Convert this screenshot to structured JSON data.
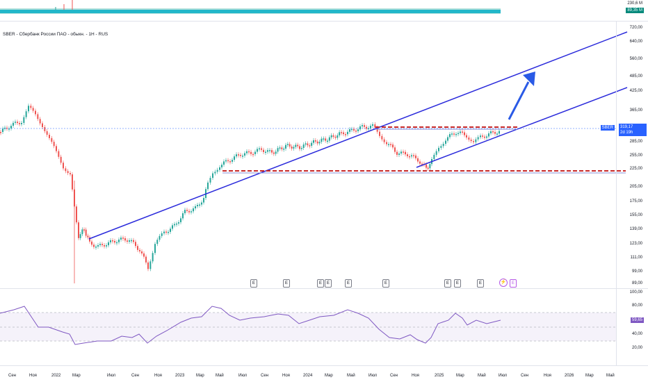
{
  "window": {
    "title": "SBER - Сбербанк России ПАО - обыкн. - 1H - RUS"
  },
  "colors": {
    "up": "#26a69a",
    "down": "#ef5350",
    "channel": "#2a2adb",
    "level": "#c82828",
    "rsi": "#7e57c2",
    "accent": "#2962ff"
  },
  "volume_pane": {
    "labels": [
      "230,6 M",
      "89,35 M"
    ]
  },
  "price_axis": {
    "ticks": [
      "720,00",
      "640,00",
      "560,00",
      "485,00",
      "425,00",
      "365,00",
      "285,00",
      "255,00",
      "225,00",
      "205,00",
      "175,00",
      "155,00",
      "139,00",
      "123,00",
      "111,00",
      "99,00",
      "89,00"
    ]
  },
  "last_price": {
    "symbol": "SBER",
    "value": "319,17",
    "countdown": "2d 19h"
  },
  "rsi_axis": {
    "ticks": [
      "100,00",
      "80,00",
      "40,00",
      "20,00"
    ],
    "value": "59,65"
  },
  "time_axis": {
    "labels": [
      "Сен",
      "Ноя",
      "2022",
      "Мар",
      "Июл",
      "Сен",
      "Ноя",
      "2023",
      "Мар",
      "Май",
      "Июл",
      "Сен",
      "Ноя",
      "2024",
      "Мар",
      "Май",
      "Июл",
      "Сен",
      "Ноя",
      "2025",
      "Мар",
      "Май",
      "Июл",
      "Сен",
      "Ноя",
      "2026",
      "Мар",
      "Май"
    ]
  },
  "events": {
    "earnings_label": "E",
    "flash_icon": "lightning-icon"
  }
}
